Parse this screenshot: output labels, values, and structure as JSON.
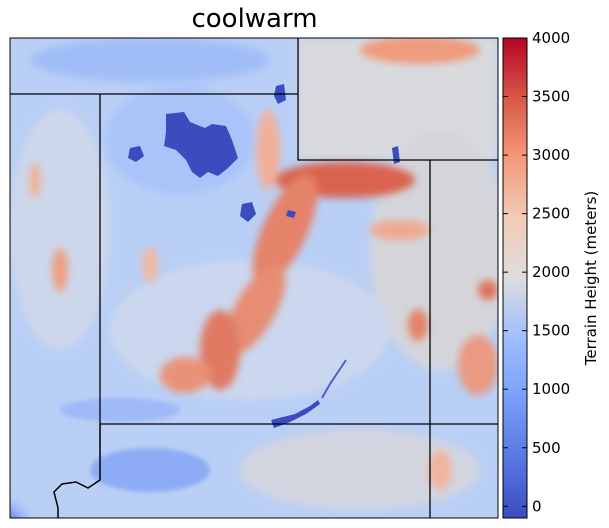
{
  "title": "coolwarm",
  "colorbar": {
    "label": "Terrain Height (meters)",
    "min": -100,
    "max": 4000,
    "ticks": [
      "4000",
      "3500",
      "3000",
      "2500",
      "2000",
      "1500",
      "1000",
      "500",
      "0"
    ],
    "colormap": "coolwarm",
    "colors": [
      "#3b4cc0",
      "#6788ee",
      "#9abbff",
      "#c9d7f0",
      "#dddddd",
      "#f2cbb7",
      "#f49a7b",
      "#d95847",
      "#b40426"
    ]
  }
}
